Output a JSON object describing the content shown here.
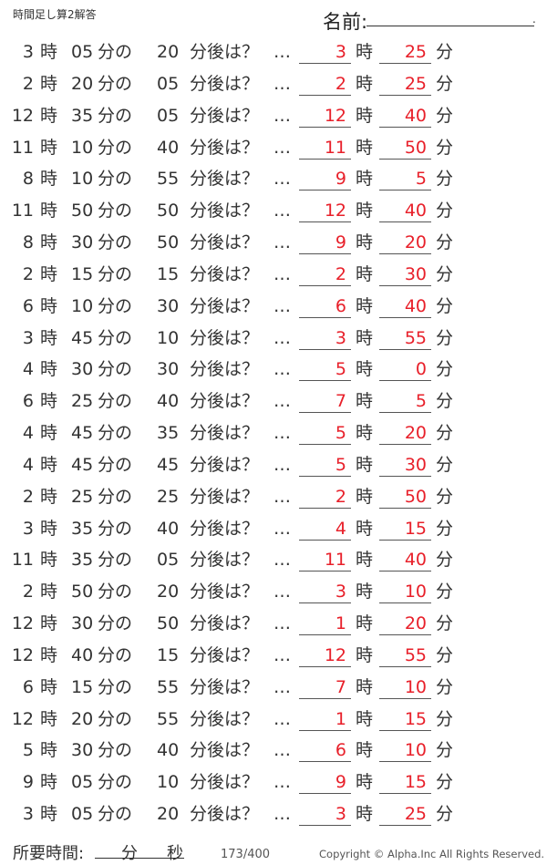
{
  "header": {
    "title": "時間足し算2解答",
    "name_label": "名前:"
  },
  "labels": {
    "hour": "時",
    "minute_of": "分の",
    "minute_after": "分後は？",
    "ellipsis": "…",
    "answer_hour": "時",
    "answer_minute": "分"
  },
  "answer_color": "#e8202a",
  "problems": [
    {
      "h": "3",
      "m": "05",
      "add": "20",
      "ah": "3",
      "am": "25"
    },
    {
      "h": "2",
      "m": "20",
      "add": "05",
      "ah": "2",
      "am": "25"
    },
    {
      "h": "12",
      "m": "35",
      "add": "05",
      "ah": "12",
      "am": "40"
    },
    {
      "h": "11",
      "m": "10",
      "add": "40",
      "ah": "11",
      "am": "50"
    },
    {
      "h": "8",
      "m": "10",
      "add": "55",
      "ah": "9",
      "am": "5"
    },
    {
      "h": "11",
      "m": "50",
      "add": "50",
      "ah": "12",
      "am": "40"
    },
    {
      "h": "8",
      "m": "30",
      "add": "50",
      "ah": "9",
      "am": "20"
    },
    {
      "h": "2",
      "m": "15",
      "add": "15",
      "ah": "2",
      "am": "30"
    },
    {
      "h": "6",
      "m": "10",
      "add": "30",
      "ah": "6",
      "am": "40"
    },
    {
      "h": "3",
      "m": "45",
      "add": "10",
      "ah": "3",
      "am": "55"
    },
    {
      "h": "4",
      "m": "30",
      "add": "30",
      "ah": "5",
      "am": "0"
    },
    {
      "h": "6",
      "m": "25",
      "add": "40",
      "ah": "7",
      "am": "5"
    },
    {
      "h": "4",
      "m": "45",
      "add": "35",
      "ah": "5",
      "am": "20"
    },
    {
      "h": "4",
      "m": "45",
      "add": "45",
      "ah": "5",
      "am": "30"
    },
    {
      "h": "2",
      "m": "25",
      "add": "25",
      "ah": "2",
      "am": "50"
    },
    {
      "h": "3",
      "m": "35",
      "add": "40",
      "ah": "4",
      "am": "15"
    },
    {
      "h": "11",
      "m": "35",
      "add": "05",
      "ah": "11",
      "am": "40"
    },
    {
      "h": "2",
      "m": "50",
      "add": "20",
      "ah": "3",
      "am": "10"
    },
    {
      "h": "12",
      "m": "30",
      "add": "50",
      "ah": "1",
      "am": "20"
    },
    {
      "h": "12",
      "m": "40",
      "add": "15",
      "ah": "12",
      "am": "55"
    },
    {
      "h": "6",
      "m": "15",
      "add": "55",
      "ah": "7",
      "am": "10"
    },
    {
      "h": "12",
      "m": "20",
      "add": "55",
      "ah": "1",
      "am": "15"
    },
    {
      "h": "5",
      "m": "30",
      "add": "40",
      "ah": "6",
      "am": "10"
    },
    {
      "h": "9",
      "m": "05",
      "add": "10",
      "ah": "9",
      "am": "15"
    },
    {
      "h": "3",
      "m": "05",
      "add": "20",
      "ah": "3",
      "am": "25"
    }
  ],
  "footer": {
    "time_label": "所要時間:",
    "minutes": "分",
    "seconds": "秒",
    "page": "173/400",
    "copyright": "Copyright ©  Alpha.Inc All Rights Reserved."
  }
}
